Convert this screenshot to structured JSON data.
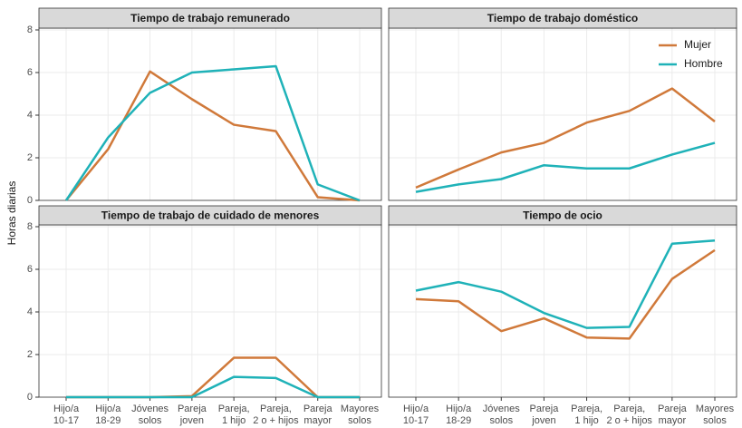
{
  "chart_data": {
    "type": "line",
    "ylabel": "Horas diarias",
    "categories": [
      [
        "Hijo/a",
        "10-17"
      ],
      [
        "Hijo/a",
        "18-29"
      ],
      [
        "Jóvenes",
        "solos"
      ],
      [
        "Pareja",
        "joven"
      ],
      [
        "Pareja,",
        "1 hijo"
      ],
      [
        "Pareja,",
        "2 o + hijos"
      ],
      [
        "Pareja",
        "mayor"
      ],
      [
        "Mayores",
        "solos"
      ]
    ],
    "ylim": [
      0,
      8
    ],
    "yticks": [
      0,
      2,
      4,
      6,
      8
    ],
    "grid": true,
    "legend": "top-right",
    "series": [
      {
        "name": "Mujer",
        "color": "#d0793a"
      },
      {
        "name": "Hombre",
        "color": "#1fb2b8"
      }
    ],
    "panels": [
      {
        "title": "Tiempo de trabajo remunerado",
        "series": [
          {
            "values": [
              0,
              2.4,
              6.05,
              4.75,
              3.55,
              3.25,
              0.15,
              0
            ]
          },
          {
            "values": [
              0,
              2.95,
              5.05,
              6.0,
              6.15,
              6.3,
              0.75,
              0
            ]
          }
        ]
      },
      {
        "title": "Tiempo de trabajo doméstico",
        "series": [
          {
            "values": [
              0.6,
              1.45,
              2.25,
              2.7,
              3.65,
              4.2,
              5.25,
              3.7
            ]
          },
          {
            "values": [
              0.4,
              0.75,
              1.0,
              1.65,
              1.5,
              1.5,
              2.15,
              2.7
            ]
          }
        ]
      },
      {
        "title": "Tiempo de trabajo de cuidado de menores",
        "series": [
          {
            "values": [
              0,
              0,
              0,
              0.05,
              1.85,
              1.85,
              0,
              0
            ]
          },
          {
            "values": [
              0,
              0,
              0,
              0,
              0.95,
              0.9,
              0,
              0
            ]
          }
        ]
      },
      {
        "title": "Tiempo de ocio",
        "series": [
          {
            "values": [
              4.6,
              4.5,
              3.1,
              3.7,
              2.8,
              2.75,
              5.55,
              6.9
            ]
          },
          {
            "values": [
              5.0,
              5.4,
              4.95,
              3.95,
              3.25,
              3.3,
              7.2,
              7.35
            ]
          }
        ]
      }
    ]
  }
}
